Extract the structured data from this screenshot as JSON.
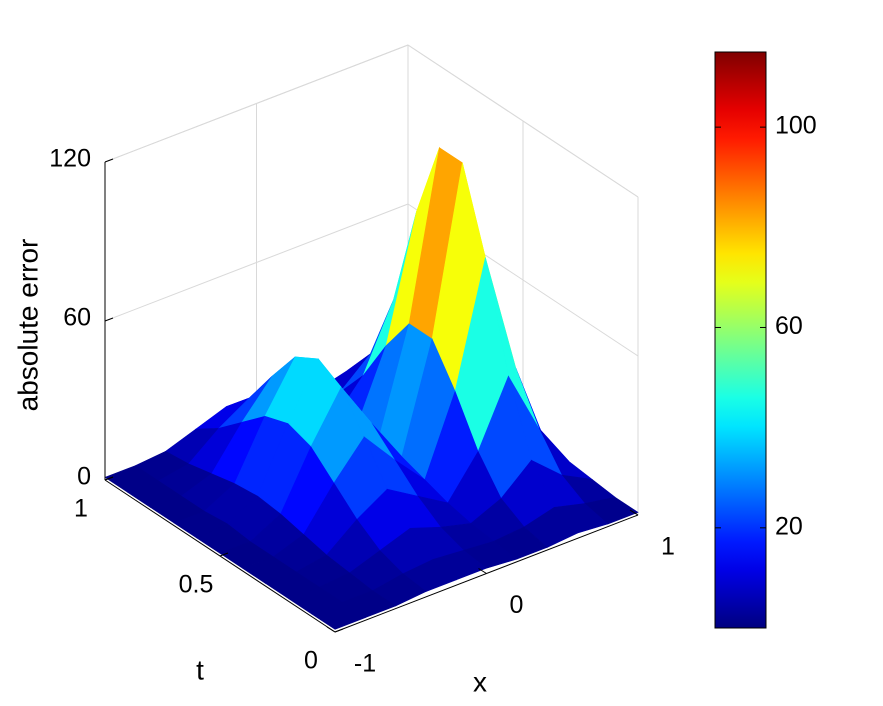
{
  "chart_data": {
    "type": "surface",
    "zlabel": "absolute error",
    "xlabel": "x",
    "ylabel": "t",
    "x": [
      -1,
      -0.8,
      -0.6,
      -0.4,
      -0.2,
      0,
      0.2,
      0.4,
      0.6,
      0.8,
      1
    ],
    "y": [
      0,
      0.1,
      0.2,
      0.3,
      0.4,
      0.5,
      0.6,
      0.7,
      0.8,
      0.9,
      1
    ],
    "z": [
      [
        1,
        1,
        1,
        2,
        2,
        2,
        1,
        1,
        2,
        1,
        1
      ],
      [
        1,
        1,
        1,
        3,
        4,
        3,
        2,
        3,
        6,
        3,
        1
      ],
      [
        1,
        1,
        2,
        6,
        10,
        6,
        3,
        8,
        18,
        8,
        2
      ],
      [
        1,
        1,
        3,
        12,
        19,
        12,
        5,
        20,
        44,
        20,
        3
      ],
      [
        1,
        1,
        5,
        20,
        33,
        20,
        8,
        37,
        83,
        37,
        4
      ],
      [
        1,
        1,
        7,
        28,
        46,
        28,
        11,
        51,
        113,
        50,
        5
      ],
      [
        1,
        2,
        8,
        31,
        51,
        31,
        12,
        51,
        113,
        50,
        5
      ],
      [
        1,
        1,
        7,
        28,
        46,
        28,
        10,
        37,
        83,
        37,
        4
      ],
      [
        1,
        1,
        5,
        20,
        33,
        20,
        7,
        20,
        44,
        20,
        3
      ],
      [
        1,
        1,
        3,
        12,
        19,
        12,
        4,
        8,
        18,
        8,
        2
      ],
      [
        1,
        1,
        2,
        6,
        10,
        6,
        2,
        3,
        6,
        3,
        1
      ]
    ],
    "xlim": [
      -1,
      1
    ],
    "xticks": [
      -1,
      0,
      1
    ],
    "ylim": [
      0,
      1
    ],
    "yticks": [
      0,
      0.5,
      1
    ],
    "zlim": [
      0,
      120
    ],
    "zticks": [
      0,
      60,
      120
    ],
    "grid": true,
    "colormap": "jet",
    "colorbar": {
      "clim": [
        0,
        115
      ],
      "ticks": [
        20,
        60,
        100
      ]
    }
  }
}
